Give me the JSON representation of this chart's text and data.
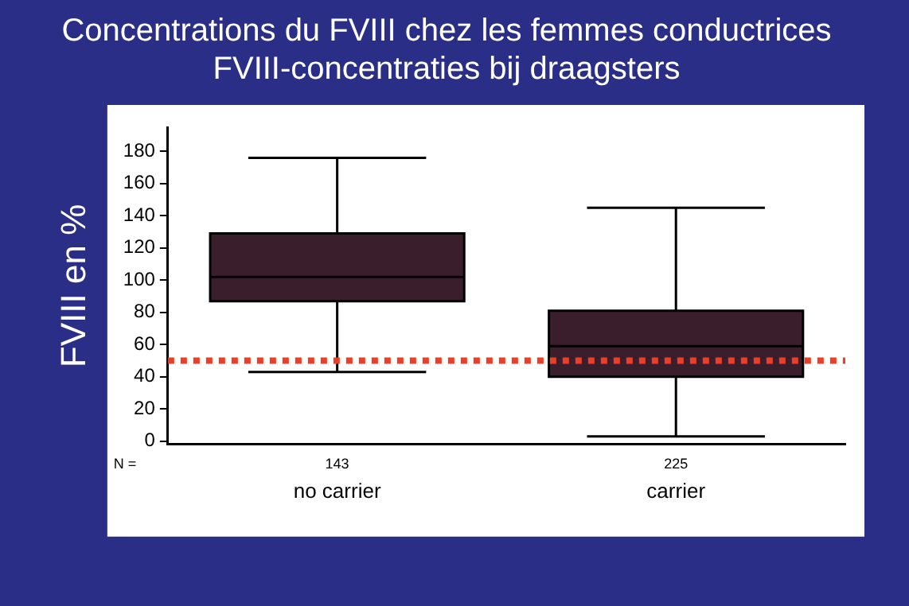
{
  "chart_data": {
    "type": "box",
    "title": "Concentrations du FVIII chez les femmes conductrices",
    "subtitle": "FVIII-concentraties bij draagsters",
    "ylabel": "FVIII en %",
    "categories": [
      "no carrier",
      "carrier"
    ],
    "boxes": [
      {
        "low": 43,
        "q1": 87,
        "median": 102,
        "q3": 129,
        "high": 176
      },
      {
        "low": 3,
        "q1": 40,
        "median": 59,
        "q3": 81,
        "high": 145
      }
    ],
    "color": "#3b1e2b",
    "ylim": [
      -2,
      195
    ],
    "yticks": [
      0,
      20,
      40,
      60,
      80,
      100,
      120,
      140,
      160,
      180
    ],
    "grid": false,
    "legend": false,
    "ref_lines": [
      {
        "axis": "y",
        "value": 50,
        "color": "#e8402a",
        "line_style": "dotted"
      }
    ],
    "annotations": [
      "N =",
      "143",
      "225"
    ]
  }
}
